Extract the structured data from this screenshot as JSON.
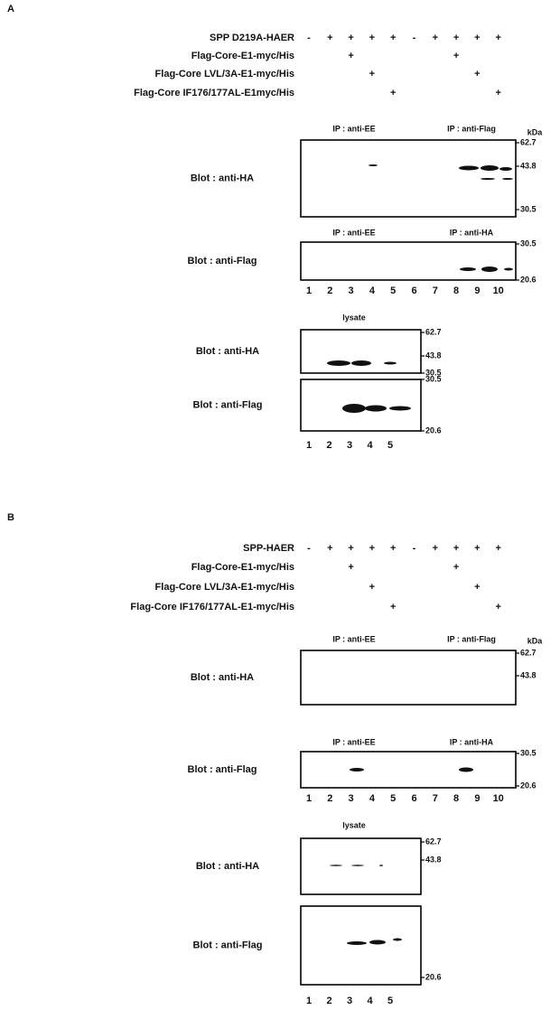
{
  "panels": [
    {
      "letter": "A",
      "conditions": [
        {
          "label": "SPP D219A-HAER",
          "signs": [
            "-",
            "+",
            "+",
            "+",
            "+",
            "-",
            "+",
            "+",
            "+",
            "+"
          ]
        },
        {
          "label": "Flag-Core-E1-myc/His",
          "signs": [
            null,
            null,
            "+",
            null,
            null,
            null,
            null,
            "+",
            null,
            null
          ]
        },
        {
          "label": "Flag-Core LVL/3A-E1-myc/His",
          "signs": [
            null,
            null,
            null,
            "+",
            null,
            null,
            null,
            null,
            "+",
            null
          ]
        },
        {
          "label": "Flag-Core IF176/177AL-E1myc/His",
          "signs": [
            null,
            null,
            null,
            null,
            "+",
            null,
            null,
            null,
            null,
            "+"
          ]
        }
      ],
      "ip_blots": [
        {
          "ip_left": "IP : anti-EE",
          "ip_right": "IP : anti-Flag",
          "blot": "Blot : anti-HA",
          "unit": "kDa",
          "markers": [
            62.7,
            43.8,
            30.5
          ]
        },
        {
          "ip_left": "IP : anti-EE",
          "ip_right": "IP : anti-HA",
          "blot": "Blot : anti-Flag",
          "markers": [
            30.5,
            20.6
          ]
        }
      ],
      "lanes": [
        "1",
        "2",
        "3",
        "4",
        "5",
        "6",
        "7",
        "8",
        "9",
        "10"
      ],
      "lysate_title": "lysate",
      "lysate_blots": [
        {
          "blot": "Blot : anti-HA",
          "markers": [
            62.7,
            43.8,
            30.5
          ]
        },
        {
          "blot": "Blot : anti-Flag",
          "markers": [
            30.5,
            20.6
          ]
        }
      ],
      "lysate_lanes": [
        "1",
        "2",
        "3",
        "4",
        "5"
      ]
    },
    {
      "letter": "B",
      "conditions": [
        {
          "label": "SPP-HAER",
          "signs": [
            "-",
            "+",
            "+",
            "+",
            "+",
            "-",
            "+",
            "+",
            "+",
            "+"
          ]
        },
        {
          "label": "Flag-Core-E1-myc/His",
          "signs": [
            null,
            null,
            "+",
            null,
            null,
            null,
            null,
            "+",
            null,
            null
          ]
        },
        {
          "label": "Flag-Core LVL/3A-E1-myc/His",
          "signs": [
            null,
            null,
            null,
            "+",
            null,
            null,
            null,
            null,
            "+",
            null
          ]
        },
        {
          "label": "Flag-Core IF176/177AL-E1-myc/His",
          "signs": [
            null,
            null,
            null,
            null,
            "+",
            null,
            null,
            null,
            null,
            "+"
          ]
        }
      ],
      "ip_blots": [
        {
          "ip_left": "IP : anti-EE",
          "ip_right": "IP : anti-Flag",
          "blot": "Blot : anti-HA",
          "unit": "kDa",
          "markers": [
            62.7,
            43.8
          ]
        },
        {
          "ip_left": "IP : anti-EE",
          "ip_right": "IP : anti-HA",
          "blot": "Blot : anti-Flag",
          "markers": [
            30.5,
            20.6
          ]
        }
      ],
      "lanes": [
        "1",
        "2",
        "3",
        "4",
        "5",
        "6",
        "7",
        "8",
        "9",
        "10"
      ],
      "lysate_title": "lysate",
      "lysate_blots": [
        {
          "blot": "Blot : anti-HA",
          "markers": [
            62.7,
            43.8
          ]
        },
        {
          "blot": "Blot : anti-Flag",
          "markers": [
            20.6
          ]
        }
      ],
      "lysate_lanes": [
        "1",
        "2",
        "3",
        "4",
        "5"
      ]
    }
  ]
}
